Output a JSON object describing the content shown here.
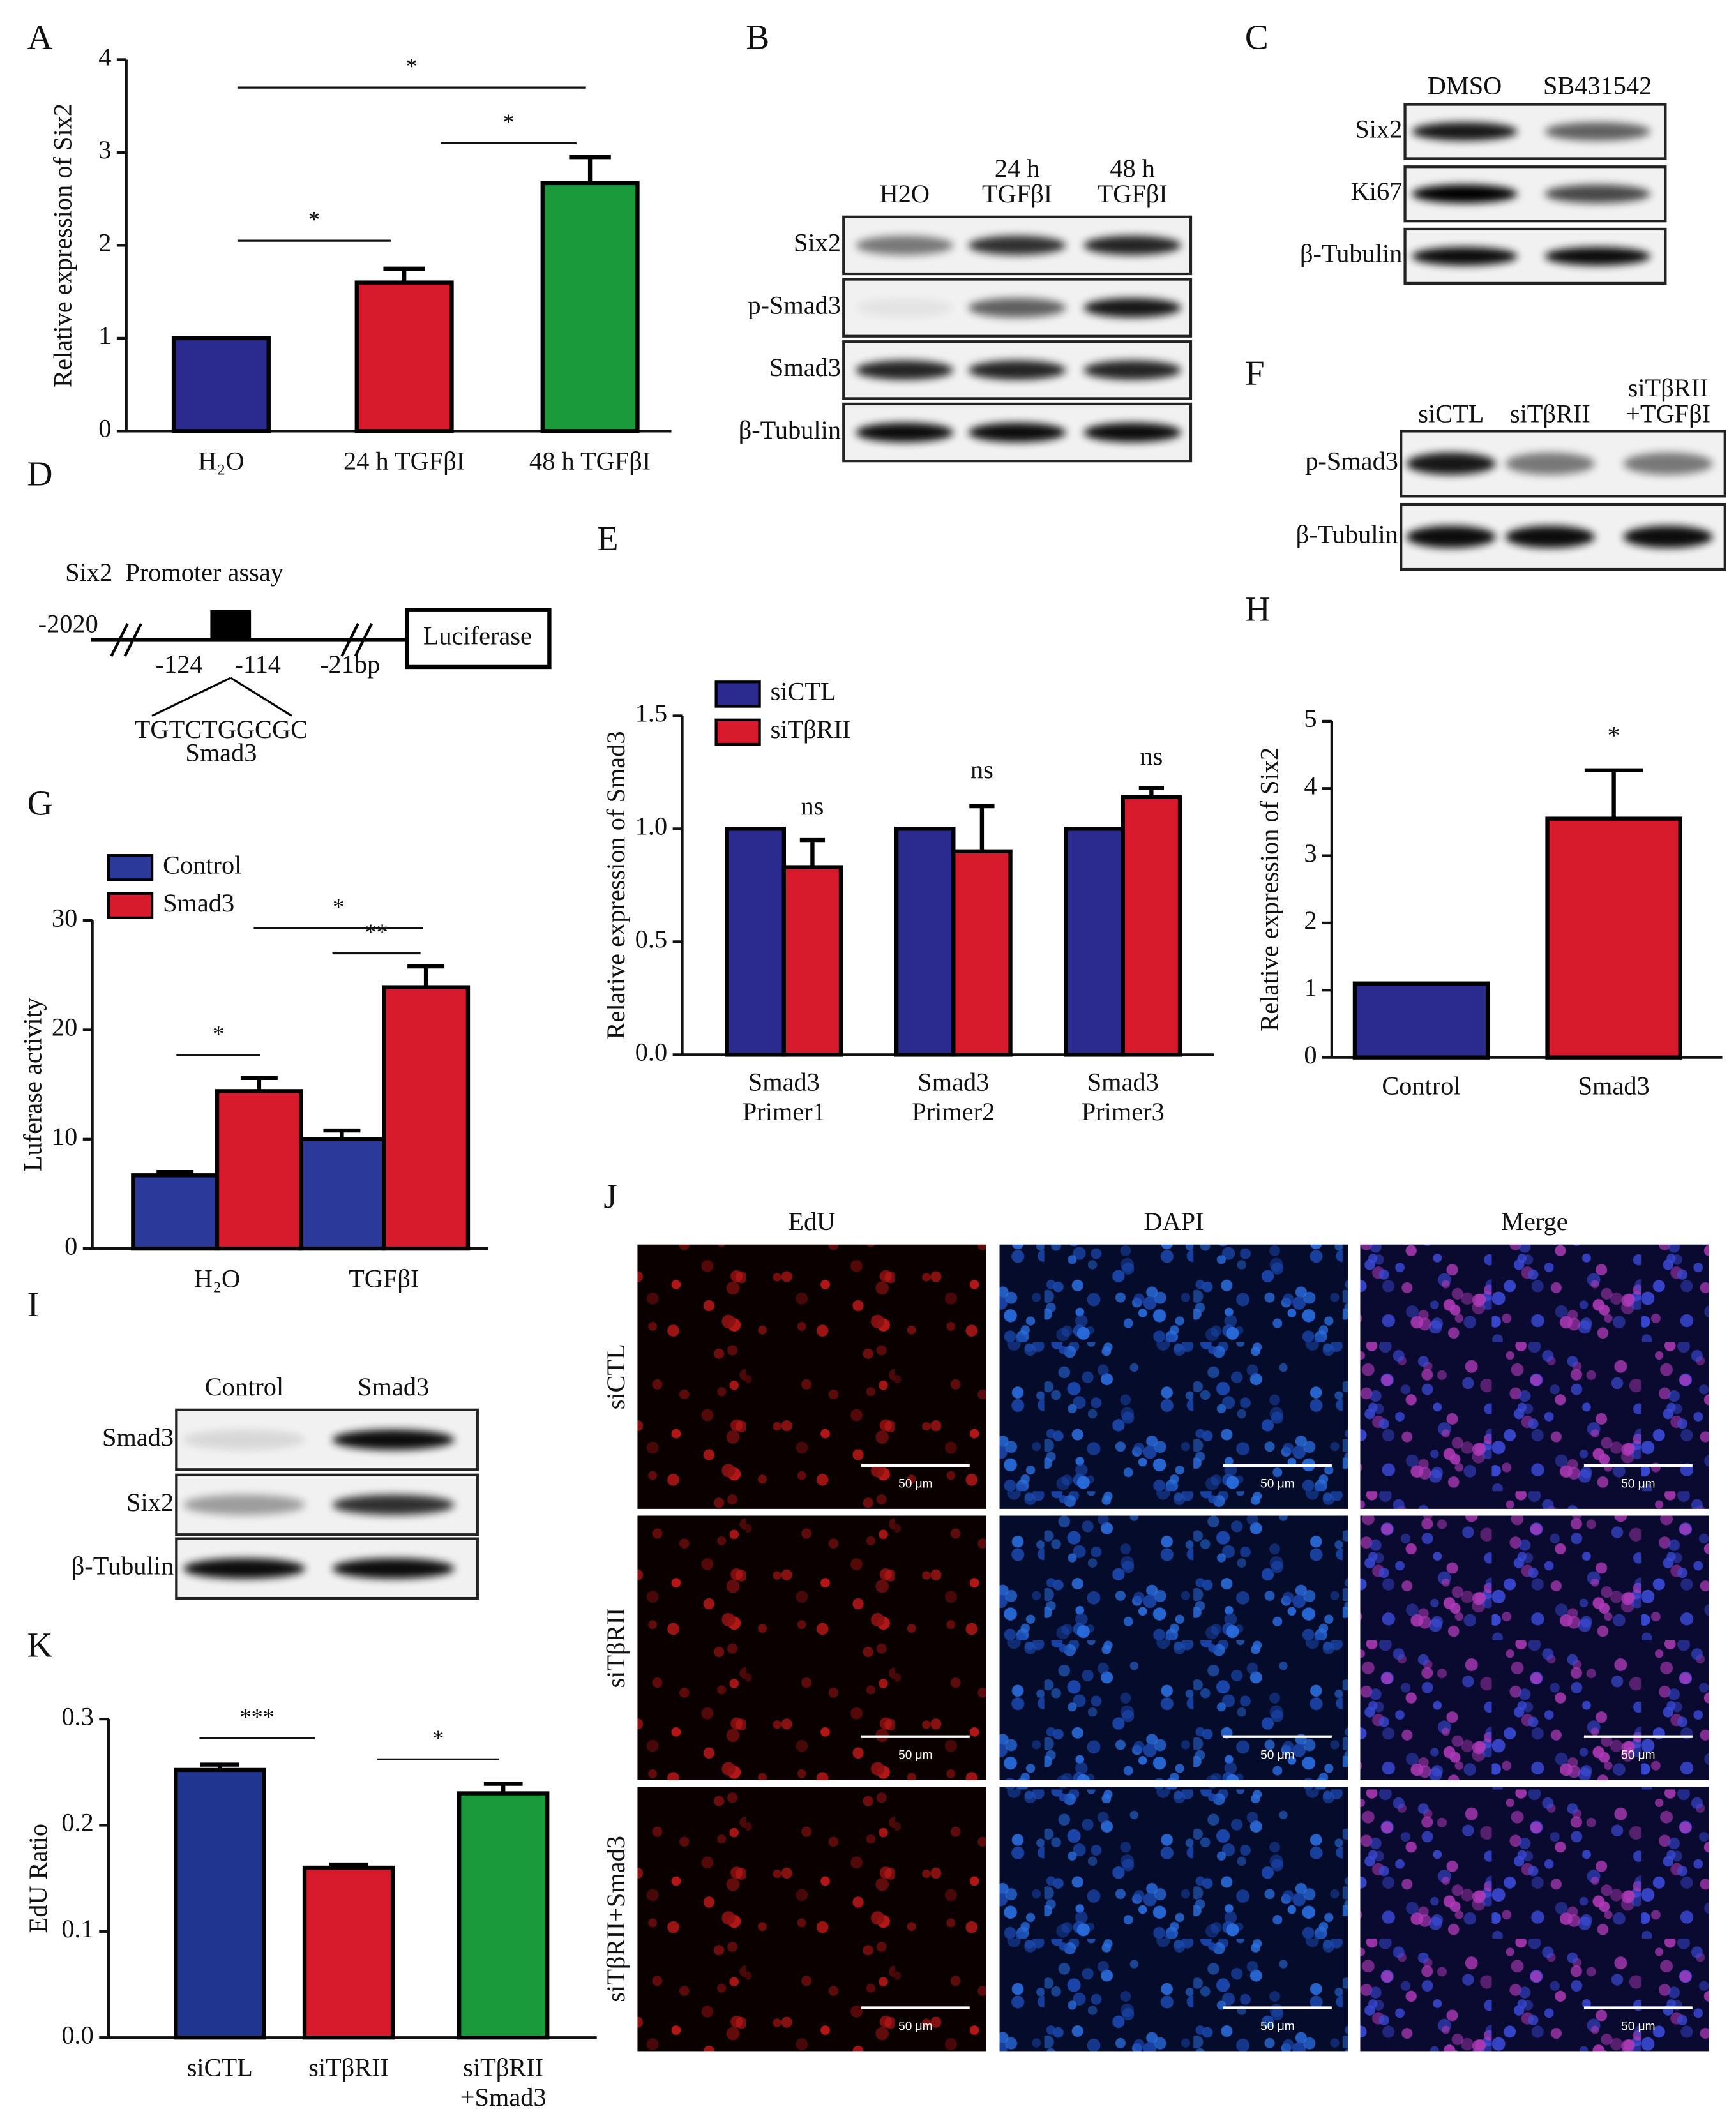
{
  "chart_data": [
    {
      "type": "bar",
      "label": "A",
      "ylabel": "Relative expression of Six2",
      "categories": [
        "H₂O",
        "24 h TGFβI",
        "48 h TGFβI"
      ],
      "values": [
        1.0,
        1.6,
        2.67
      ],
      "errors": [
        null,
        0.15,
        0.28
      ],
      "colors": [
        "#2b2b8f",
        "#d81b2c",
        "#1b9a3c"
      ],
      "ylim": [
        0,
        4
      ],
      "yticks": [
        0,
        1,
        2,
        3,
        4
      ],
      "significance": [
        {
          "label": "*",
          "y": 2.05
        },
        {
          "label": "*",
          "y": 3.1
        },
        {
          "label": "*",
          "y": 3.7
        }
      ]
    },
    {
      "type": "bar",
      "label": "G",
      "ylabel": "Luferase activity",
      "categories": [
        "H₂O",
        "TGFβI"
      ],
      "series": [
        {
          "name": "Control",
          "color": "#2b3a9a",
          "values": [
            6.7,
            10.0
          ],
          "errors": [
            0.3,
            0.8
          ]
        },
        {
          "name": "Smad3",
          "color": "#d81b2c",
          "values": [
            14.4,
            23.9
          ],
          "errors": [
            1.2,
            1.9
          ]
        }
      ],
      "ylim": [
        0,
        30
      ],
      "yticks": [
        0,
        10,
        20,
        30
      ],
      "significance": [
        {
          "label": "*",
          "y": 17.7
        },
        {
          "label": "**",
          "y": 27.0
        },
        {
          "label": "*",
          "y": 29.3
        }
      ]
    },
    {
      "type": "bar",
      "label": "E",
      "ylabel": "Relative expression of Smad3",
      "categories": [
        [
          "Smad3",
          "Primer1"
        ],
        [
          "Smad3",
          "Primer2"
        ],
        [
          "Smad3",
          "Primer3"
        ]
      ],
      "series": [
        {
          "name": "siCTL",
          "color": "#2b2b8f",
          "values": [
            1.0,
            1.0,
            1.0
          ]
        },
        {
          "name": "siTβRII",
          "color": "#d81b2c",
          "values": [
            0.83,
            0.9,
            1.14
          ],
          "errors": [
            0.12,
            0.2,
            0.04
          ]
        }
      ],
      "ylim": [
        0,
        1.5
      ],
      "yticks": [
        {
          "value": 0,
          "label": "0.0"
        },
        0.5,
        {
          "value": 1,
          "label": "1.0"
        },
        1.5
      ],
      "annotations": [
        {
          "label": "ns",
          "y": 1.09
        },
        {
          "label": "ns",
          "y": 1.25
        },
        {
          "label": "ns",
          "y": 1.31
        }
      ]
    },
    {
      "type": "bar",
      "label": "H",
      "ylabel": "Relative expression of Six2",
      "categories": [
        "Control",
        "Smad3"
      ],
      "values": [
        1.1,
        3.55
      ],
      "errors": [
        null,
        0.72
      ],
      "colors": [
        "#2b2b8f",
        "#d81b2c"
      ],
      "ylim": [
        0,
        5
      ],
      "yticks": [
        0,
        1,
        2,
        3,
        4,
        5
      ],
      "annotations": [
        {
          "label": "*",
          "y": 4.75
        }
      ]
    },
    {
      "type": "bar",
      "label": "K",
      "ylabel": "EdU Ratio",
      "categories": [
        [
          "siCTL"
        ],
        [
          "siTβRII"
        ],
        [
          "siTβRII",
          "+Smad3"
        ]
      ],
      "values": [
        0.252,
        0.16,
        0.23
      ],
      "errors": [
        0.005,
        0.003,
        0.009
      ],
      "colors": [
        "#1f3590",
        "#d81b2c",
        "#1b9a3c"
      ],
      "ylim": [
        0,
        0.3
      ],
      "yticks": [
        {
          "value": 0,
          "label": "0.0"
        },
        0.1,
        0.2,
        0.3
      ],
      "significance": [
        {
          "label": "***",
          "y": 0.282
        },
        {
          "label": "*",
          "y": 0.262
        }
      ]
    }
  ],
  "blots": [
    {
      "label": "B",
      "columns": [
        [
          "H2O"
        ],
        [
          "24 h",
          "TGFβI"
        ],
        [
          "48 h",
          "TGFβI"
        ]
      ],
      "rows": [
        "Six2",
        "p-Smad3",
        "Smad3",
        "β-Tubulin"
      ]
    },
    {
      "label": "C",
      "columns": [
        [
          "DMSO"
        ],
        [
          "SB431542"
        ]
      ],
      "rows": [
        "Six2",
        "Ki67",
        "β-Tubulin"
      ]
    },
    {
      "label": "F",
      "columns": [
        [
          "siCTL"
        ],
        [
          "siTβRII"
        ],
        [
          "siTβRII",
          "+TGFβI"
        ]
      ],
      "rows": [
        "p-Smad3",
        "β-Tubulin"
      ]
    },
    {
      "label": "I",
      "columns": [
        [
          "Control"
        ],
        [
          "Smad3"
        ]
      ],
      "rows": [
        "Smad3",
        "Six2",
        "β-Tubulin"
      ]
    }
  ],
  "promoter": {
    "label": "D",
    "title": "Six2  Promoter assay",
    "start": "-2020",
    "site_start": "-124",
    "site_end": "-114",
    "end": "-21bp",
    "reporter": "Luciferase",
    "sequence": "TGTCTGGCGC",
    "factor": "Smad3"
  },
  "microscopy": {
    "label": "J",
    "columns": [
      "EdU",
      "DAPI",
      "Merge"
    ],
    "rows": [
      "siCTL",
      "siTβRII",
      "siTβRII+Smad3"
    ],
    "scale_bar": "50 μm"
  }
}
